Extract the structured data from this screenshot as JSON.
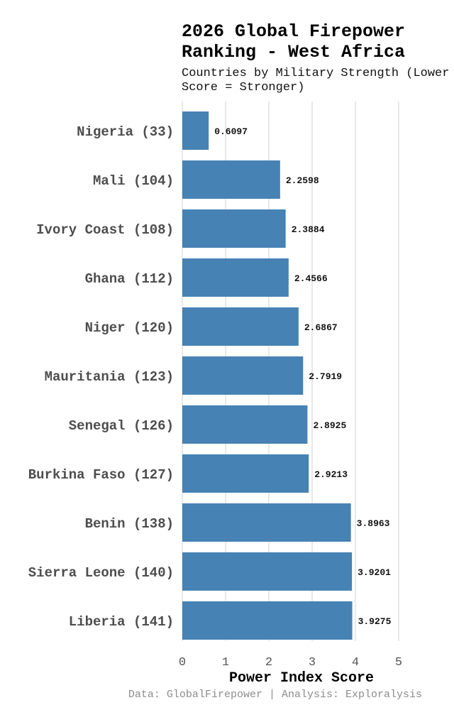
{
  "chart_data": {
    "type": "bar",
    "orientation": "horizontal",
    "title": "2026 Global Firepower Ranking - West Africa",
    "subtitle": "Countries by Military Strength (Lower Score = Stronger)",
    "xlabel": "Power Index Score",
    "ylabel": "",
    "xlim": [
      0,
      5
    ],
    "xticks": [
      "0",
      "1",
      "2",
      "3",
      "4",
      "5"
    ],
    "grid": "vertical",
    "bar_color": "#4682b4",
    "categories": [
      "Nigeria (33)",
      "Mali (104)",
      "Ivory Coast (108)",
      "Ghana (112)",
      "Niger (120)",
      "Mauritania (123)",
      "Senegal (126)",
      "Burkina Faso (127)",
      "Benin (138)",
      "Sierra Leone (140)",
      "Liberia (141)"
    ],
    "values": [
      0.6097,
      2.2598,
      2.3884,
      2.4566,
      2.6867,
      2.7919,
      2.8925,
      2.9213,
      3.8963,
      3.9201,
      3.9275
    ],
    "value_labels": [
      "0.6097",
      "2.2598",
      "2.3884",
      "2.4566",
      "2.6867",
      "2.7919",
      "2.8925",
      "2.9213",
      "3.8963",
      "3.9201",
      "3.9275"
    ],
    "caption": "Data: GlobalFirepower | Analysis: Exploralysis"
  }
}
